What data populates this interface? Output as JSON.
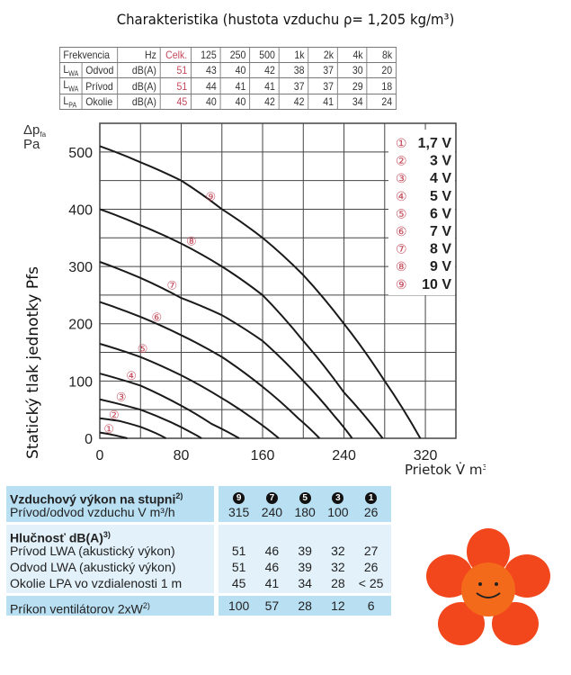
{
  "title": "Charakteristika (hustota vzduchu ρ= 1,205 kg/m³)",
  "freq_table": {
    "header": [
      "Frekvencia",
      "",
      "Hz",
      "Celk.",
      "125",
      "250",
      "500",
      "1k",
      "2k",
      "4k",
      "8k"
    ],
    "rows": [
      [
        "LWA",
        "Odvod",
        "dB(A)",
        "51",
        "43",
        "40",
        "42",
        "38",
        "37",
        "30",
        "20"
      ],
      [
        "LWA",
        "Prívod",
        "dB(A)",
        "51",
        "44",
        "41",
        "41",
        "37",
        "37",
        "29",
        "18"
      ],
      [
        "LPA",
        "Okolie",
        "dB(A)",
        "45",
        "40",
        "40",
        "42",
        "42",
        "41",
        "34",
        "24"
      ]
    ],
    "accent": "#c44a5a"
  },
  "chart_data": {
    "type": "line",
    "ylabel": "Statický tlak jednotky Pfs",
    "yunit": "Δpfa Pa",
    "xlabel": "Prietok V̇ m³/h",
    "xlim": [
      0,
      350
    ],
    "ylim": [
      0,
      550
    ],
    "xticks": [
      "0",
      "80",
      "160",
      "240",
      "320"
    ],
    "yticks": [
      "0",
      "100",
      "200",
      "300",
      "400",
      "500"
    ],
    "grid": true,
    "legend_position": "top-right",
    "series": [
      {
        "name": "1",
        "label": "1,7 V",
        "points": [
          [
            0,
            10
          ],
          [
            10,
            7
          ],
          [
            20,
            3
          ],
          [
            27,
            0
          ]
        ],
        "marker": [
          9,
          17
        ]
      },
      {
        "name": "2",
        "label": "3 V",
        "points": [
          [
            0,
            35
          ],
          [
            20,
            30
          ],
          [
            40,
            20
          ],
          [
            55,
            9
          ],
          [
            65,
            0
          ]
        ],
        "marker": [
          14,
          42
        ]
      },
      {
        "name": "3",
        "label": "4 V",
        "points": [
          [
            0,
            68
          ],
          [
            40,
            50
          ],
          [
            70,
            28
          ],
          [
            90,
            10
          ],
          [
            100,
            0
          ]
        ],
        "marker": [
          21,
          73
        ]
      },
      {
        "name": "4",
        "label": "5 V",
        "points": [
          [
            0,
            113
          ],
          [
            40,
            92
          ],
          [
            80,
            57
          ],
          [
            110,
            25
          ],
          [
            137,
            0
          ]
        ],
        "marker": [
          31,
          110
        ]
      },
      {
        "name": "5",
        "label": "6 V",
        "points": [
          [
            0,
            165
          ],
          [
            40,
            142
          ],
          [
            80,
            110
          ],
          [
            120,
            70
          ],
          [
            150,
            35
          ],
          [
            176,
            0
          ]
        ],
        "marker": [
          42,
          157
        ]
      },
      {
        "name": "6",
        "label": "7 V",
        "points": [
          [
            0,
            238
          ],
          [
            40,
            212
          ],
          [
            80,
            180
          ],
          [
            120,
            142
          ],
          [
            160,
            90
          ],
          [
            195,
            35
          ],
          [
            216,
            0
          ]
        ],
        "marker": [
          56,
          212
        ]
      },
      {
        "name": "7",
        "label": "8 V",
        "points": [
          [
            0,
            308
          ],
          [
            40,
            280
          ],
          [
            80,
            245
          ],
          [
            120,
            215
          ],
          [
            160,
            170
          ],
          [
            200,
            100
          ],
          [
            230,
            40
          ],
          [
            248,
            0
          ]
        ],
        "marker": [
          71,
          268
        ]
      },
      {
        "name": "8",
        "label": "9 V",
        "points": [
          [
            0,
            400
          ],
          [
            40,
            372
          ],
          [
            80,
            340
          ],
          [
            120,
            300
          ],
          [
            160,
            250
          ],
          [
            200,
            170
          ],
          [
            240,
            80
          ],
          [
            278,
            0
          ]
        ],
        "marker": [
          90,
          345
        ]
      },
      {
        "name": "9",
        "label": "10 V",
        "points": [
          [
            0,
            510
          ],
          [
            40,
            482
          ],
          [
            80,
            450
          ],
          [
            120,
            400
          ],
          [
            160,
            350
          ],
          [
            200,
            285
          ],
          [
            240,
            200
          ],
          [
            280,
            100
          ],
          [
            315,
            0
          ]
        ],
        "marker": [
          109,
          423
        ]
      }
    ]
  },
  "perf": {
    "title": "Vzduchový výkon na stupni",
    "title_sup": "2)",
    "levels": [
      "9",
      "7",
      "5",
      "3",
      "1"
    ],
    "flow_label": "Prívod/odvod vzduchu V m³/h",
    "flow": [
      "315",
      "240",
      "180",
      "100",
      "26"
    ],
    "noise_title": "Hlučnosť dB(A)",
    "noise_sup": "3)",
    "noise_rows": [
      {
        "label": "Prívod LWA (akustický výkon)",
        "values": [
          "51",
          "46",
          "39",
          "32",
          "27"
        ]
      },
      {
        "label": "Odvod LWA (akustický výkon)",
        "values": [
          "51",
          "46",
          "39",
          "32",
          "26"
        ]
      },
      {
        "label": "Okolie LPA vo vzdialenosti 1 m",
        "values": [
          "45",
          "41",
          "34",
          "28",
          "< 25"
        ]
      }
    ],
    "power_label": "Príkon ventilátorov 2xW",
    "power_sup": "2)",
    "power": [
      "100",
      "57",
      "28",
      "12",
      "6"
    ]
  }
}
